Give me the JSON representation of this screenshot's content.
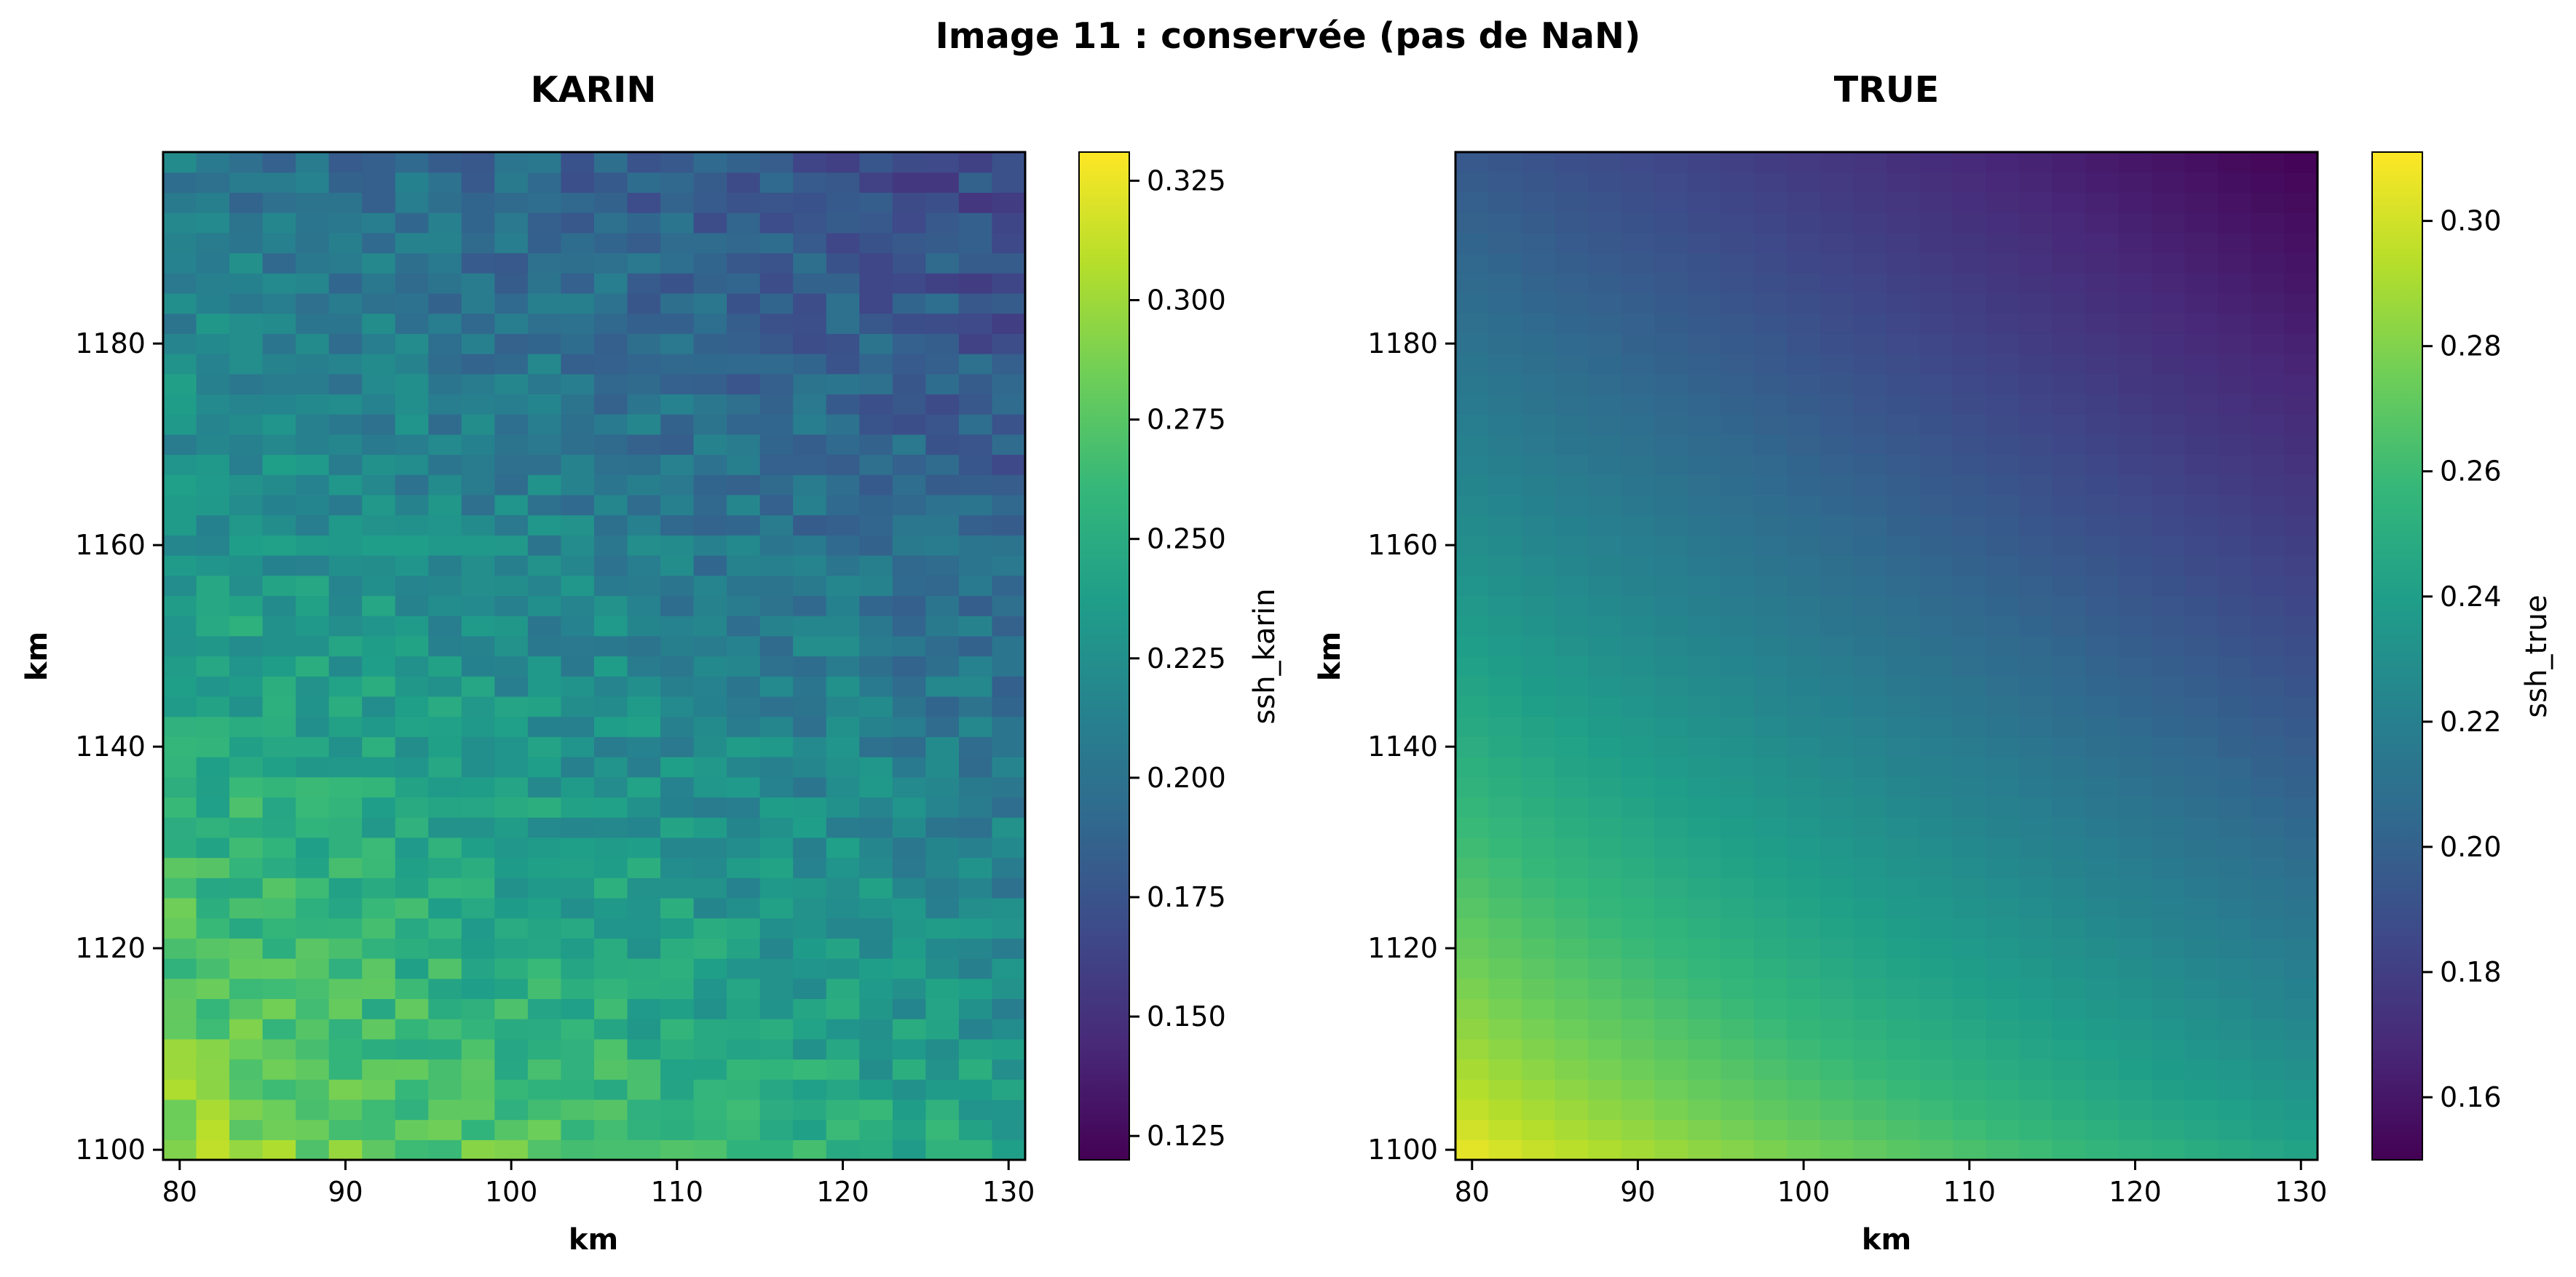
{
  "figure_title": "Image 11 : conservée (pas de NaN)",
  "chart_data": [
    {
      "type": "heatmap",
      "title": "KARIN",
      "xlabel": "km",
      "ylabel": "km",
      "xlim": [
        79,
        131
      ],
      "ylim": [
        1099,
        1199
      ],
      "x_ticks": [
        "80",
        "90",
        "100",
        "110",
        "120",
        "130"
      ],
      "y_ticks": [
        "1100",
        "1120",
        "1140",
        "1160",
        "1180"
      ],
      "grid": {
        "cols": 26,
        "rows": 50
      },
      "colormap": "viridis",
      "colorbar": {
        "label": "ssh_karin",
        "range": [
          0.12,
          0.331
        ],
        "ticks": [
          "0.125",
          "0.150",
          "0.175",
          "0.200",
          "0.225",
          "0.250",
          "0.275",
          "0.300",
          "0.325"
        ]
      },
      "field": {
        "description_values": "ssh decreasing from ~0.30 (bottom-left) to ~0.18 (top-right) with measurement noise",
        "bottom_left": 0.305,
        "bottom_right": 0.245,
        "top_left": 0.205,
        "top_right": 0.165,
        "noise_amplitude": 0.018
      }
    },
    {
      "type": "heatmap",
      "title": "TRUE",
      "xlabel": "km",
      "ylabel": "km",
      "xlim": [
        79,
        131
      ],
      "ylim": [
        1099,
        1199
      ],
      "x_ticks": [
        "80",
        "90",
        "100",
        "110",
        "120",
        "130"
      ],
      "y_ticks": [
        "1100",
        "1120",
        "1140",
        "1160",
        "1180"
      ],
      "grid": {
        "cols": 26,
        "rows": 50
      },
      "colormap": "viridis",
      "colorbar": {
        "label": "ssh_true",
        "range": [
          0.15,
          0.311
        ],
        "ticks": [
          "0.16",
          "0.18",
          "0.20",
          "0.22",
          "0.24",
          "0.26",
          "0.28",
          "0.30"
        ]
      },
      "field": {
        "bottom_left": 0.311,
        "bottom_right": 0.245,
        "top_left": 0.195,
        "top_right": 0.15,
        "noise_amplitude": 0.0
      }
    }
  ],
  "colors": {
    "viridis": [
      "#440154",
      "#482878",
      "#3e4989",
      "#31688e",
      "#26828e",
      "#1f9e89",
      "#35b779",
      "#6ece58",
      "#b5de2b",
      "#fde725"
    ]
  }
}
